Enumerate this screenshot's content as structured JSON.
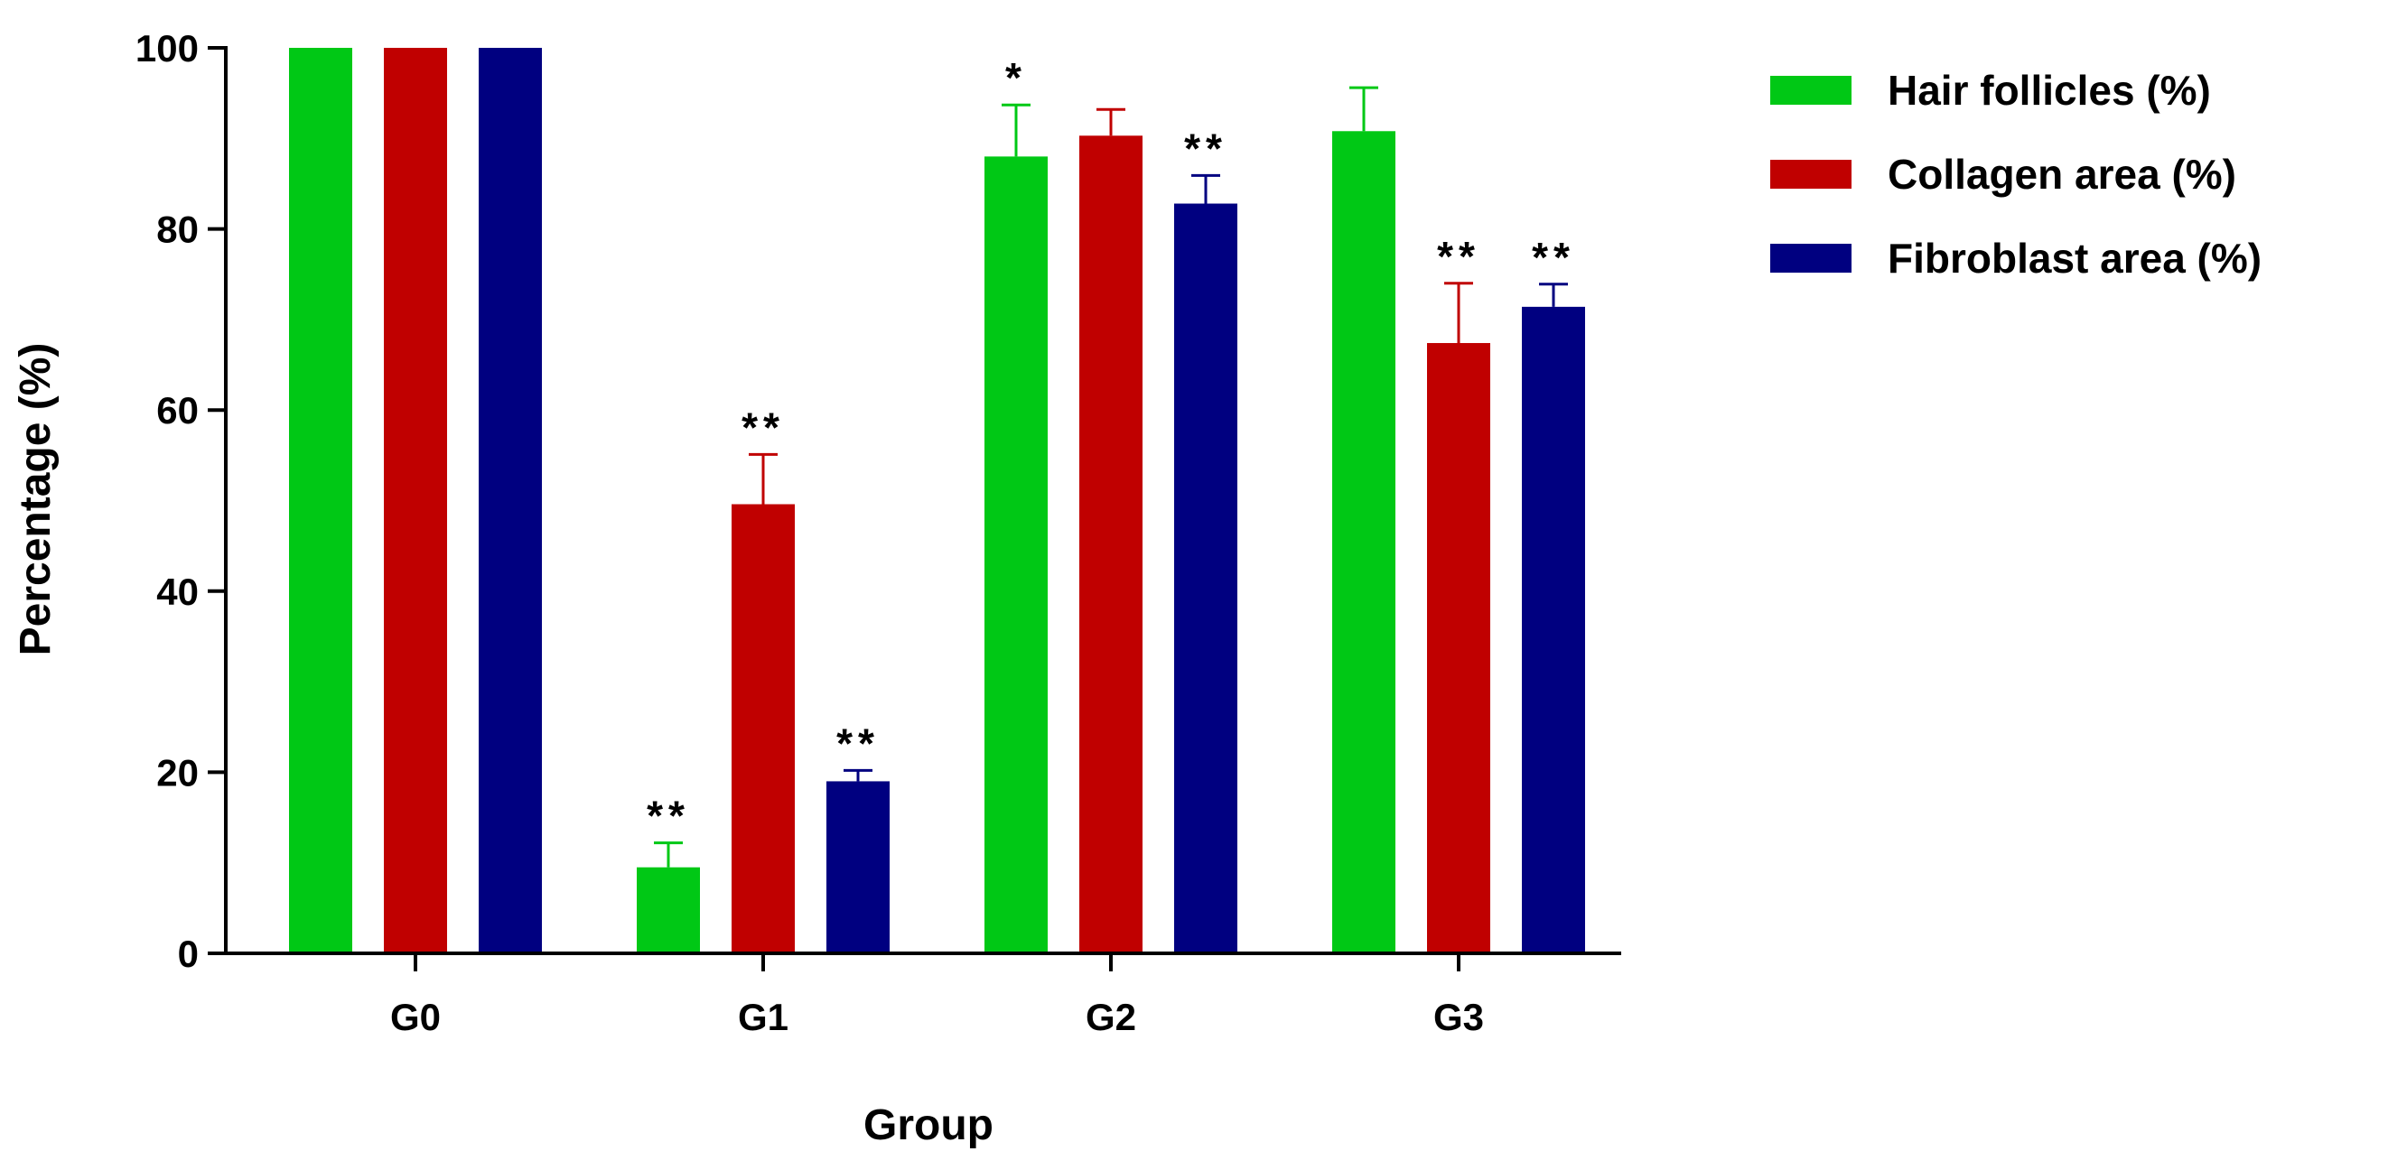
{
  "chart_data": {
    "type": "bar",
    "xlabel": "Group",
    "ylabel": "Percentage (%)",
    "ylim": [
      0,
      100
    ],
    "yticks": [
      0,
      20,
      40,
      60,
      80,
      100
    ],
    "categories": [
      "G0",
      "G1",
      "G2",
      "G3"
    ],
    "legend_position": "top-right",
    "grid": false,
    "series": [
      {
        "name": "Hair follicles (%)",
        "color": "#00c815",
        "values": [
          100,
          9.5,
          88,
          90.8
        ],
        "errors": [
          0,
          2.7,
          5.7,
          4.8
        ],
        "significance": [
          "",
          "**",
          "*",
          ""
        ]
      },
      {
        "name": "Collagen area (%)",
        "color": "#c00000",
        "values": [
          100,
          49.6,
          90.3,
          67.4
        ],
        "errors": [
          0,
          5.5,
          2.9,
          6.6
        ],
        "significance": [
          "",
          "**",
          "",
          "**"
        ]
      },
      {
        "name": "Fibroblast area (%)",
        "color": "#000080",
        "values": [
          100,
          19,
          82.8,
          71.4
        ],
        "errors": [
          0,
          1.2,
          3.1,
          2.5
        ],
        "significance": [
          "",
          "**",
          "**",
          "**"
        ]
      }
    ]
  }
}
